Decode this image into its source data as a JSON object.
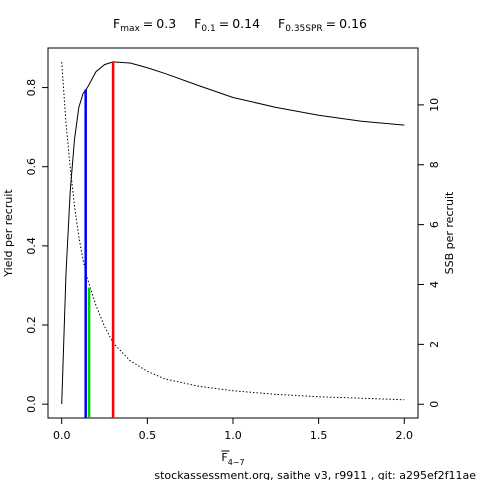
{
  "chart_data": {
    "type": "line",
    "title_parts": [
      {
        "symbol": "F",
        "subscript": "max",
        "operator": "=",
        "value": 0.3
      },
      {
        "symbol": "F",
        "subscript": "0.1",
        "operator": "=",
        "value": 0.14
      },
      {
        "symbol": "F",
        "subscript": "0.35SPR",
        "operator": "=",
        "value": 0.16
      }
    ],
    "xlabel": {
      "symbol": "F",
      "subscript": "4−7"
    },
    "ylabel": "Yield per recruit",
    "y2label": "SSB per recruit",
    "footer": "stockassessment.org, saithe v3, r9911 , git: a295ef2f11ae",
    "x": [
      0,
      0.025,
      0.05,
      0.075,
      0.1,
      0.125,
      0.15,
      0.2,
      0.25,
      0.3,
      0.4,
      0.5,
      0.6,
      0.8,
      1.0,
      1.25,
      1.5,
      1.75,
      2.0
    ],
    "series": [
      {
        "name": "Yield per recruit",
        "color": "#000000",
        "dash": "none",
        "values": [
          0,
          0.33,
          0.54,
          0.67,
          0.75,
          0.785,
          0.8,
          0.84,
          0.858,
          0.865,
          0.862,
          0.85,
          0.836,
          0.805,
          0.775,
          0.75,
          0.73,
          0.715,
          0.705
        ]
      },
      {
        "name": "SSB per recruit",
        "color": "#000000",
        "dash": "1.5 2",
        "axis": "y2",
        "values": [
          11.43,
          9.4,
          7.9,
          6.6,
          5.6,
          4.8,
          4.2,
          3.3,
          2.6,
          2.05,
          1.45,
          1.1,
          0.85,
          0.6,
          0.45,
          0.33,
          0.25,
          0.2,
          0.15
        ]
      }
    ],
    "reference_lines": [
      {
        "x": 0.3,
        "top": 0.865,
        "color": "#ff0000"
      },
      {
        "x": 0.14,
        "top": 0.795,
        "color": "#0000ff"
      },
      {
        "x": 0.16,
        "top": 3.9,
        "axis": "y2",
        "color": "#00cc00"
      }
    ],
    "xlim": [
      -0.08,
      2.08
    ],
    "xticks": [
      {
        "value": 0,
        "label": "0.0"
      },
      {
        "value": 0.5,
        "label": "0.5"
      },
      {
        "value": 1,
        "label": "1.0"
      },
      {
        "value": 1.5,
        "label": "1.5"
      },
      {
        "value": 2,
        "label": "2.0"
      }
    ],
    "ylim": [
      -0.035,
      0.9
    ],
    "yticks": [
      {
        "value": 0,
        "label": "0.0"
      },
      {
        "value": 0.2,
        "label": "0.2"
      },
      {
        "value": 0.4,
        "label": "0.4"
      },
      {
        "value": 0.6,
        "label": "0.6"
      },
      {
        "value": 0.8,
        "label": "0.8"
      }
    ],
    "y2lim": [
      -0.46,
      11.9
    ],
    "y2ticks": [
      0,
      2,
      4,
      6,
      8,
      10
    ]
  }
}
